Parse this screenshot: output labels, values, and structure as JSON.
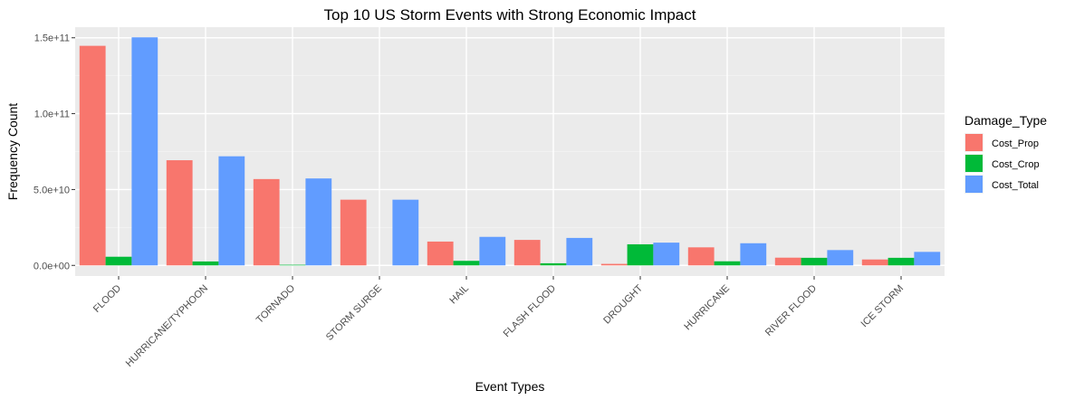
{
  "chart_data": {
    "type": "bar",
    "title": "Top 10 US Storm Events with Strong Economic Impact",
    "xlabel": "Event Types",
    "ylabel": "Frequency Count",
    "categories": [
      "FLOOD",
      "HURRICANE/TYPHOON",
      "TORNADO",
      "STORM SURGE",
      "HAIL",
      "FLASH FLOOD",
      "DROUGHT",
      "HURRICANE",
      "RIVER FLOOD",
      "ICE STORM"
    ],
    "series": [
      {
        "name": "Cost_Prop",
        "color": "#F8766D",
        "values": [
          144700000000,
          69300000000,
          56900000000,
          43300000000,
          15700000000,
          16800000000,
          1000000000,
          11900000000,
          5100000000,
          3900000000
        ]
      },
      {
        "name": "Cost_Crop",
        "color": "#00BA38",
        "values": [
          5700000000,
          2600000000,
          400000000,
          0,
          3000000000,
          1400000000,
          13900000000,
          2700000000,
          5000000000,
          5000000000
        ]
      },
      {
        "name": "Cost_Total",
        "color": "#619CFF",
        "values": [
          150300000000,
          71900000000,
          57300000000,
          43300000000,
          18800000000,
          18100000000,
          15000000000,
          14600000000,
          10100000000,
          8900000000
        ]
      }
    ],
    "ylim": [
      -7000000000,
      157000000000
    ],
    "yticks": [
      0,
      50000000000,
      100000000000,
      150000000000
    ],
    "ytick_labels": [
      "0.0e+00",
      "5.0e+10",
      "1.0e+11",
      "1.5e+11"
    ],
    "grid": true,
    "legend": {
      "title": "Damage_Type",
      "position": "right"
    }
  }
}
